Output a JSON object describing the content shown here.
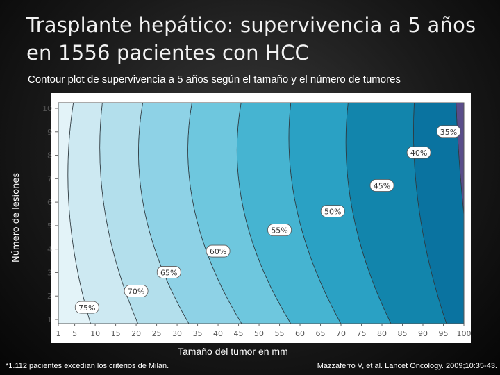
{
  "slide": {
    "title_line1": "Trasplante hepático: supervivencia a 5 años",
    "title_line2": "en 1556 pacientes con HCC",
    "subtitle": "Contour plot de supervivencia a 5 años según el tamaño y el número de tumores",
    "footnote": "*1.112 pacientes excedían los criterios de Milán.",
    "citation": "Mazzaferro V, et al. Lancet Oncology. 2009;10:35-43."
  },
  "chart_data": {
    "type": "heatmap",
    "subtype": "contour",
    "title": "Contour plot de supervivencia a 5 años según el tamaño y el número de tumores",
    "xlabel": "Tamaño del tumor en mm",
    "ylabel": "Número de lesiones",
    "x_ticks": [
      "1",
      "5",
      "10",
      "15",
      "20",
      "25",
      "30",
      "35",
      "40",
      "45",
      "50",
      "55",
      "60",
      "65",
      "70",
      "75",
      "80",
      "85",
      "90",
      "95",
      "100"
    ],
    "y_ticks": [
      "1",
      "2",
      "3",
      "4",
      "5",
      "6",
      "7",
      "8",
      "9",
      "10"
    ],
    "xlim": [
      1,
      100
    ],
    "ylim": [
      1,
      10
    ],
    "contour_levels": [
      {
        "label": "75%",
        "x": 8,
        "y": 1.5
      },
      {
        "label": "70%",
        "x": 20,
        "y": 2.2
      },
      {
        "label": "65%",
        "x": 28,
        "y": 3.0
      },
      {
        "label": "60%",
        "x": 40,
        "y": 3.9
      },
      {
        "label": "55%",
        "x": 55,
        "y": 4.8
      },
      {
        "label": "50%",
        "x": 68,
        "y": 5.6
      },
      {
        "label": "45%",
        "x": 80,
        "y": 6.7
      },
      {
        "label": "40%",
        "x": 89,
        "y": 8.1
      },
      {
        "label": "35%",
        "x": 100,
        "y": 9.0
      }
    ],
    "band_colors": [
      "#e3f3f8",
      "#cde9f2",
      "#b3dfec",
      "#8ed2e6",
      "#6ec7de",
      "#46b4d1",
      "#2aa1c4",
      "#1285ac",
      "#0a73a0",
      "#5a4d8a"
    ],
    "grid": false,
    "legend": "none"
  }
}
